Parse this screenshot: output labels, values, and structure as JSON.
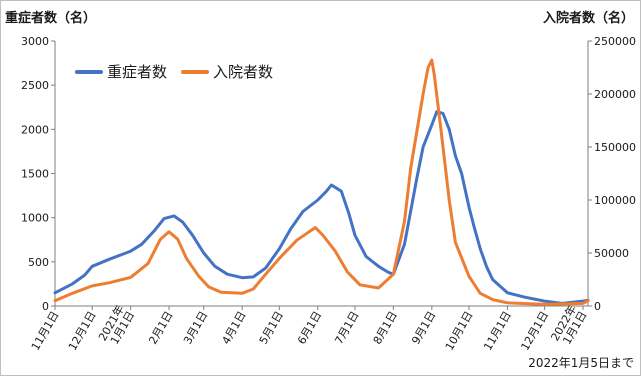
{
  "chart_data": {
    "type": "line",
    "y_left_title": "重症者数（名）",
    "y_right_title": "入院者数（名）",
    "footnote": "2022年1月5日まで",
    "x_tick_labels": [
      "11月1日",
      "12月1日",
      "2021年\n1月1日",
      "2月1日",
      "3月1日",
      "4月1日",
      "5月1日",
      "6月1日",
      "7月1日",
      "8月1日",
      "9月1日",
      "10月1日",
      "11月1日",
      "12月1日",
      "2022年\n1月1日"
    ],
    "x_tick_dates": [
      "2020-11-01",
      "2020-12-01",
      "2021-01-01",
      "2021-02-01",
      "2021-03-01",
      "2021-04-01",
      "2021-05-01",
      "2021-06-01",
      "2021-07-01",
      "2021-08-01",
      "2021-09-01",
      "2021-10-01",
      "2021-11-01",
      "2021-12-01",
      "2022-01-01"
    ],
    "x_range": [
      "2020-11-01",
      "2022-01-05"
    ],
    "y_left": {
      "min": 0,
      "max": 3000,
      "ticks": [
        0,
        500,
        1000,
        1500,
        2000,
        2500,
        3000
      ]
    },
    "y_right": {
      "min": 0,
      "max": 250000,
      "ticks": [
        0,
        50000,
        100000,
        150000,
        200000,
        250000
      ]
    },
    "legend_placement": "top-left",
    "grid": "none",
    "series": [
      {
        "name": "重症者数",
        "axis": "left",
        "color": "#4472C4",
        "points": [
          [
            "2020-11-01",
            150
          ],
          [
            "2020-11-15",
            250
          ],
          [
            "2020-11-25",
            350
          ],
          [
            "2020-12-01",
            450
          ],
          [
            "2020-12-15",
            530
          ],
          [
            "2021-01-01",
            620
          ],
          [
            "2021-01-10",
            700
          ],
          [
            "2021-01-20",
            850
          ],
          [
            "2021-01-28",
            990
          ],
          [
            "2021-02-05",
            1020
          ],
          [
            "2021-02-12",
            950
          ],
          [
            "2021-02-20",
            800
          ],
          [
            "2021-03-01",
            600
          ],
          [
            "2021-03-10",
            450
          ],
          [
            "2021-03-20",
            360
          ],
          [
            "2021-04-01",
            320
          ],
          [
            "2021-04-10",
            330
          ],
          [
            "2021-04-20",
            430
          ],
          [
            "2021-05-01",
            650
          ],
          [
            "2021-05-10",
            870
          ],
          [
            "2021-05-20",
            1070
          ],
          [
            "2021-06-01",
            1200
          ],
          [
            "2021-06-08",
            1300
          ],
          [
            "2021-06-12",
            1370
          ],
          [
            "2021-06-20",
            1300
          ],
          [
            "2021-06-26",
            1050
          ],
          [
            "2021-07-01",
            800
          ],
          [
            "2021-07-10",
            560
          ],
          [
            "2021-07-20",
            450
          ],
          [
            "2021-07-28",
            380
          ],
          [
            "2021-08-01",
            360
          ],
          [
            "2021-08-10",
            700
          ],
          [
            "2021-08-20",
            1450
          ],
          [
            "2021-08-25",
            1800
          ],
          [
            "2021-09-01",
            2050
          ],
          [
            "2021-09-05",
            2200
          ],
          [
            "2021-09-10",
            2180
          ],
          [
            "2021-09-15",
            2000
          ],
          [
            "2021-09-20",
            1700
          ],
          [
            "2021-09-25",
            1500
          ],
          [
            "2021-10-01",
            1120
          ],
          [
            "2021-10-05",
            900
          ],
          [
            "2021-10-10",
            650
          ],
          [
            "2021-10-15",
            450
          ],
          [
            "2021-10-20",
            300
          ],
          [
            "2021-11-01",
            150
          ],
          [
            "2021-11-15",
            100
          ],
          [
            "2021-12-01",
            55
          ],
          [
            "2021-12-15",
            30
          ],
          [
            "2022-01-01",
            55
          ],
          [
            "2022-01-05",
            65
          ]
        ]
      },
      {
        "name": "入院者数",
        "axis": "right",
        "color": "#ED7D31",
        "points": [
          [
            "2020-11-01",
            5000
          ],
          [
            "2020-11-15",
            12000
          ],
          [
            "2020-12-01",
            19000
          ],
          [
            "2020-12-15",
            22000
          ],
          [
            "2021-01-01",
            27000
          ],
          [
            "2021-01-15",
            40000
          ],
          [
            "2021-01-25",
            63000
          ],
          [
            "2021-02-01",
            70000
          ],
          [
            "2021-02-08",
            63000
          ],
          [
            "2021-02-15",
            45000
          ],
          [
            "2021-02-25",
            28000
          ],
          [
            "2021-03-05",
            18000
          ],
          [
            "2021-03-15",
            13000
          ],
          [
            "2021-04-01",
            12000
          ],
          [
            "2021-04-10",
            16000
          ],
          [
            "2021-04-20",
            30000
          ],
          [
            "2021-05-01",
            45000
          ],
          [
            "2021-05-15",
            62000
          ],
          [
            "2021-05-25",
            70000
          ],
          [
            "2021-05-30",
            74000
          ],
          [
            "2021-06-05",
            67000
          ],
          [
            "2021-06-15",
            52000
          ],
          [
            "2021-06-25",
            32000
          ],
          [
            "2021-07-05",
            20000
          ],
          [
            "2021-07-20",
            17000
          ],
          [
            "2021-08-01",
            30000
          ],
          [
            "2021-08-10",
            80000
          ],
          [
            "2021-08-15",
            130000
          ],
          [
            "2021-08-20",
            165000
          ],
          [
            "2021-08-25",
            200000
          ],
          [
            "2021-08-29",
            225000
          ],
          [
            "2021-09-01",
            232000
          ],
          [
            "2021-09-03",
            218000
          ],
          [
            "2021-09-08",
            170000
          ],
          [
            "2021-09-15",
            100000
          ],
          [
            "2021-09-20",
            60000
          ],
          [
            "2021-10-01",
            28000
          ],
          [
            "2021-10-10",
            12000
          ],
          [
            "2021-10-20",
            6000
          ],
          [
            "2021-11-01",
            3000
          ],
          [
            "2021-12-01",
            1500
          ],
          [
            "2022-01-01",
            2500
          ],
          [
            "2022-01-05",
            5000
          ]
        ]
      }
    ]
  }
}
